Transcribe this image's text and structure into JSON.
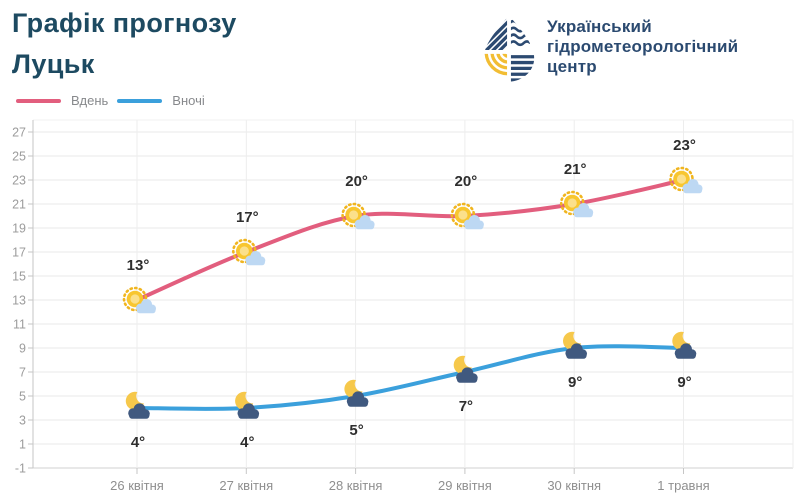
{
  "header": {
    "title": "Графік прогнозу",
    "city": "Луцьк"
  },
  "logo": {
    "line1": "Український",
    "line2": "гідрометеорологічний",
    "line3": "центр"
  },
  "legend": [
    {
      "label": "Вдень",
      "color": "#e25e7e"
    },
    {
      "label": "Вночі",
      "color": "#3ba0dc"
    }
  ],
  "colors": {
    "day_line": "#e25e7e",
    "night_line": "#3ba0dc",
    "sun": "#f8c62f",
    "sun_rays": "#f0b51f",
    "sun_core": "#fbe08b",
    "day_cloud": "#bdd8f3",
    "moon": "#f6c84b",
    "night_cloud": "#40597f",
    "title_text": "#1d4a61",
    "logo_navy": "#2c4a71",
    "logo_yellow": "#f2bd33",
    "grid": "#eaeaea",
    "axis": "#c6c6c6"
  },
  "chart_data": {
    "type": "line",
    "title": "Графік прогнозу",
    "city": "Луцьк",
    "categories": [
      "26 квітня",
      "27 квітня",
      "28 квітня",
      "29 квітня",
      "30 квітня",
      "1 травня"
    ],
    "series": [
      {
        "name": "Вдень",
        "color": "#e25e7e",
        "icon": "sun-behind-cloud",
        "values": [
          13,
          17,
          20,
          20,
          21,
          23
        ],
        "point_labels": [
          "13°",
          "17°",
          "20°",
          "20°",
          "21°",
          "23°"
        ],
        "label_position": "above"
      },
      {
        "name": "Вночі",
        "color": "#3ba0dc",
        "icon": "moon-behind-cloud",
        "values": [
          4,
          4,
          5,
          7,
          9,
          9
        ],
        "point_labels": [
          "4°",
          "4°",
          "5°",
          "7°",
          "9°",
          "9°"
        ],
        "label_position": "below"
      }
    ],
    "ylim": [
      -1,
      27
    ],
    "ytick_step": 2,
    "grid": true,
    "legend_position": "top-left"
  }
}
